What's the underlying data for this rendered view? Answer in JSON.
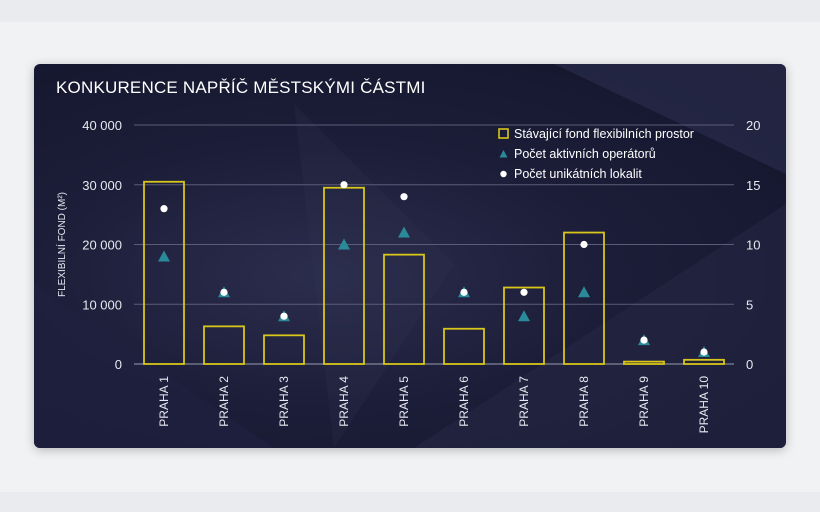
{
  "chart_data": {
    "type": "bar",
    "title": "KONKURENCE NAPŘÍČ MĚSTSKÝMI ČÁSTMI",
    "ylabel": "FLEXIBILNÍ FOND (M²)",
    "categories": [
      "PRAHA 1",
      "PRAHA 2",
      "PRAHA 3",
      "PRAHA 4",
      "PRAHA 5",
      "PRAHA 6",
      "PRAHA 7",
      "PRAHA 8",
      "PRAHA 9",
      "PRAHA 10"
    ],
    "ylim": [
      0,
      40000
    ],
    "y_ticks": [
      "0",
      "10 000",
      "20 000",
      "30 000",
      "40 000"
    ],
    "y2lim": [
      0,
      20
    ],
    "y2_ticks": [
      "0",
      "5",
      "10",
      "15",
      "20"
    ],
    "legend_position": "top-right",
    "grid": true,
    "series": [
      {
        "name": "Stávající fond flexibilních prostor",
        "axis": "left",
        "marker": "bar-outline",
        "color": "#d8c61a",
        "values": [
          30500,
          6300,
          4800,
          29500,
          18300,
          5900,
          12800,
          22000,
          400,
          700
        ]
      },
      {
        "name": "Počet aktivních operátorů",
        "axis": "right",
        "marker": "triangle",
        "color": "#2a8a99",
        "values": [
          9,
          6,
          4,
          10,
          11,
          6,
          4,
          6,
          2,
          1
        ]
      },
      {
        "name": "Počet unikátních lokalit",
        "axis": "right",
        "marker": "dot",
        "color": "#ffffff",
        "values": [
          13,
          6,
          4,
          15,
          14,
          6,
          6,
          10,
          2,
          1
        ]
      }
    ]
  }
}
